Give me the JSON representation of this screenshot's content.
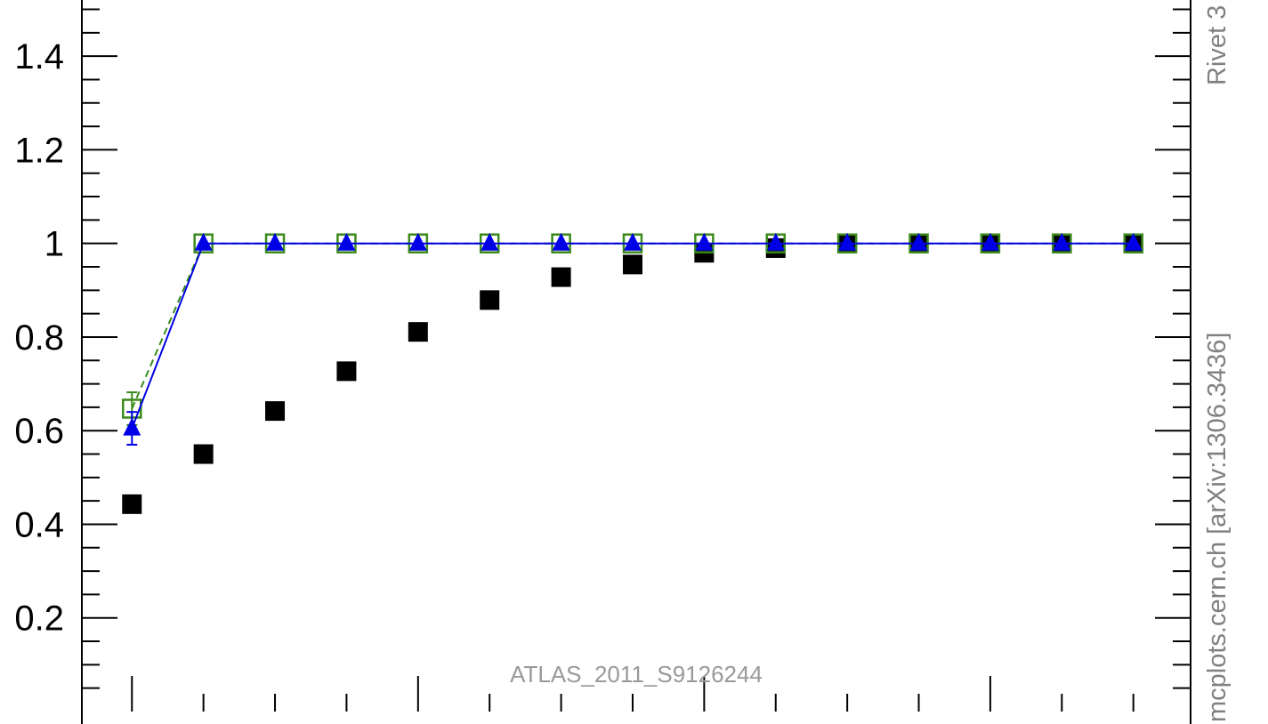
{
  "chart_data": {
    "type": "scatter",
    "analysis_label": "ATLAS_2011_S9126244",
    "side_label_1": "mcplots.cern.ch [arXiv:1306.3436]",
    "side_label_2": "Rivet 3",
    "ylim": [
      0,
      1.52
    ],
    "xlim": [
      0.3,
      15.8
    ],
    "yticks": [
      0.2,
      0.4,
      0.6,
      0.8,
      1,
      1.2,
      1.4
    ],
    "ytick_labels": [
      "0.2",
      "0.4",
      "0.6",
      "0.8",
      "1",
      "1.2",
      "1.4"
    ],
    "y_minor_step": 0.05,
    "x_major_ticks": [
      1,
      5,
      9,
      13
    ],
    "x_minor_ticks": [
      2,
      3,
      4,
      6,
      7,
      8,
      10,
      11,
      12,
      14,
      15
    ],
    "grid": false,
    "legend": "none",
    "series": [
      {
        "marker": "square-filled",
        "color": "#000000",
        "line": false,
        "x": [
          1,
          2,
          3,
          4,
          5,
          6,
          7,
          8,
          9,
          10,
          11,
          12,
          13,
          14,
          15
        ],
        "y": [
          0.443,
          0.55,
          0.642,
          0.727,
          0.811,
          0.879,
          0.928,
          0.955,
          0.98,
          0.99,
          1,
          1,
          1,
          1,
          1
        ]
      },
      {
        "marker": "square-open",
        "color": "#3a8a1c",
        "line": "dashed",
        "x": [
          1,
          2,
          3,
          4,
          5,
          6,
          7,
          8,
          9,
          10,
          11,
          12,
          13,
          14,
          15
        ],
        "y": [
          0.647,
          1,
          1,
          1,
          1,
          1,
          1,
          1,
          1,
          1,
          1,
          1,
          1,
          1,
          1
        ],
        "err": [
          0.035,
          0,
          0,
          0,
          0,
          0,
          0,
          0,
          0,
          0,
          0,
          0,
          0,
          0,
          0
        ]
      },
      {
        "marker": "triangle-filled",
        "color": "#0000e6",
        "line": "solid",
        "x": [
          1,
          2,
          3,
          4,
          5,
          6,
          7,
          8,
          9,
          10,
          11,
          12,
          13,
          14,
          15
        ],
        "y": [
          0.605,
          1,
          1,
          1,
          1,
          1,
          1,
          1,
          1,
          1,
          1,
          1,
          1,
          1,
          1
        ],
        "err": [
          0.035,
          0,
          0,
          0,
          0,
          0,
          0,
          0,
          0,
          0,
          0,
          0,
          0,
          0,
          0
        ]
      }
    ]
  }
}
